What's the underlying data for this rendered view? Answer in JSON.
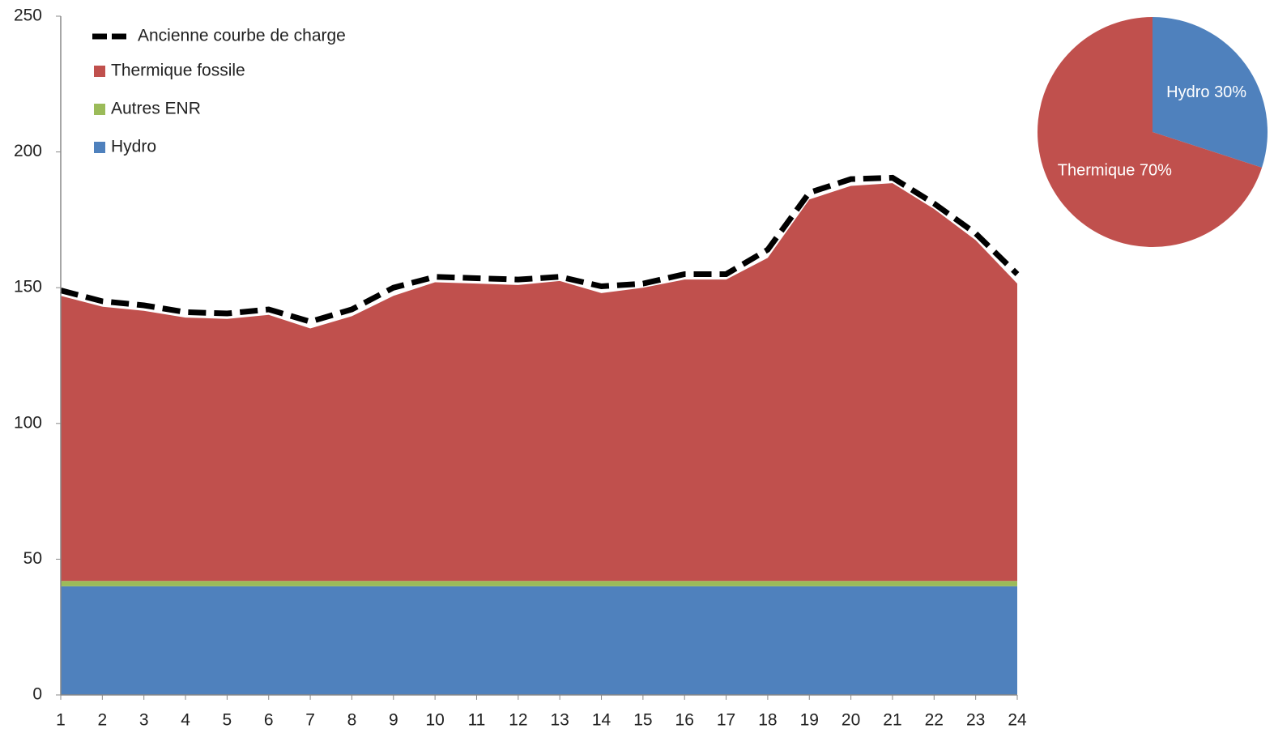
{
  "chart_data": [
    {
      "type": "area",
      "x": [
        1,
        2,
        3,
        4,
        5,
        6,
        7,
        8,
        9,
        10,
        11,
        12,
        13,
        14,
        15,
        16,
        17,
        18,
        19,
        20,
        21,
        22,
        23,
        24
      ],
      "xlim": [
        1,
        24
      ],
      "ylim": [
        0,
        250
      ],
      "yticks": [
        0,
        50,
        100,
        150,
        200,
        250
      ],
      "series": [
        {
          "name": "Hydro",
          "color": "#4f81bd",
          "type": "area",
          "values": [
            40,
            40,
            40,
            40,
            40,
            40,
            40,
            40,
            40,
            40,
            40,
            40,
            40,
            40,
            40,
            40,
            40,
            40,
            40,
            40,
            40,
            40,
            40,
            40
          ]
        },
        {
          "name": "Autres ENR",
          "color": "#9bbb59",
          "type": "area",
          "values": [
            2,
            2,
            2,
            2,
            2,
            2,
            2,
            2,
            2,
            2,
            2,
            2,
            2,
            2,
            2,
            2,
            2,
            2,
            2,
            2,
            2,
            2,
            2,
            2
          ]
        },
        {
          "name": "Thermique fossile",
          "color": "#c0504d",
          "type": "area",
          "values": [
            105,
            101,
            99.5,
            97,
            96.5,
            98,
            93,
            97.5,
            105,
            110,
            109.5,
            109,
            110.5,
            106,
            108,
            111,
            111,
            119,
            140.5,
            145.5,
            146.5,
            137,
            125.5,
            109.5
          ]
        },
        {
          "name": "Ancienne courbe de charge",
          "color": "#000000",
          "type": "line",
          "values": [
            149,
            145,
            143.5,
            141,
            140.5,
            142,
            137.5,
            142,
            150,
            154,
            153.5,
            153,
            154,
            150.5,
            151.5,
            155,
            155,
            164,
            185,
            190,
            190.5,
            181,
            170,
            155
          ]
        }
      ]
    },
    {
      "type": "pie",
      "values": [
        30,
        70
      ],
      "value_labels": [
        "Hydro 30%",
        "Thermique 70%"
      ],
      "colors": [
        "#4f81bd",
        "#c0504d"
      ]
    }
  ]
}
